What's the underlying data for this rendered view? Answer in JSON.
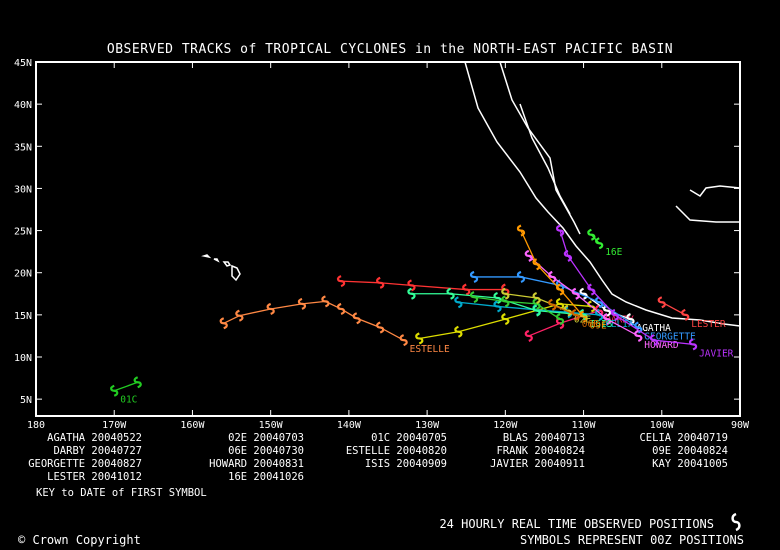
{
  "title": "OBSERVED TRACKS of TROPICAL CYCLONES in the NORTH-EAST PACIFIC BASIN",
  "axes": {
    "lat_labels": [
      "45N",
      "40N",
      "35N",
      "30N",
      "25N",
      "20N",
      "15N",
      "10N",
      "5N"
    ],
    "lat_values": [
      45,
      40,
      35,
      30,
      25,
      20,
      15,
      10,
      5
    ],
    "lon_labels": [
      "180",
      "170W",
      "160W",
      "150W",
      "140W",
      "130W",
      "120W",
      "110W",
      "100W",
      "90W"
    ],
    "lon_values": [
      -180,
      -170,
      -160,
      -150,
      -140,
      -130,
      -120,
      -110,
      -100,
      -90
    ]
  },
  "legend": [
    {
      "name": "AGATHA",
      "date": "20040522"
    },
    {
      "name": "02E",
      "date": "20040703"
    },
    {
      "name": "01C",
      "date": "20040705"
    },
    {
      "name": "BLAS",
      "date": "20040713"
    },
    {
      "name": "CELIA",
      "date": "20040719"
    },
    {
      "name": "DARBY",
      "date": "20040727"
    },
    {
      "name": "06E",
      "date": "20040730"
    },
    {
      "name": "ESTELLE",
      "date": "20040820"
    },
    {
      "name": "FRANK",
      "date": "20040824"
    },
    {
      "name": "09E",
      "date": "20040824"
    },
    {
      "name": "GEORGETTE",
      "date": "20040827"
    },
    {
      "name": "HOWARD",
      "date": "20040831"
    },
    {
      "name": "ISIS",
      "date": "20040909"
    },
    {
      "name": "JAVIER",
      "date": "20040911"
    },
    {
      "name": "KAY",
      "date": "20041005"
    },
    {
      "name": "LESTER",
      "date": "20041012"
    },
    {
      "name": "16E",
      "date": "20041026"
    }
  ],
  "legend_key": "KEY to DATE of FIRST SYMBOL",
  "footer": {
    "copyright": "Crown Copyright",
    "line1": "24 HOURLY REAL TIME OBSERVED POSITIONS",
    "line2": "SYMBOLS REPRESENT 00Z POSITIONS"
  },
  "tracks": [
    {
      "name": "01C",
      "color": "#22cc22",
      "label": "01C",
      "points": [
        [
          -170,
          6
        ],
        [
          -167,
          7
        ]
      ]
    },
    {
      "name": "ESTELLE",
      "color": "#ff8844",
      "label": "ESTELLE",
      "points": [
        [
          -133,
          12
        ],
        [
          -136,
          13.5
        ],
        [
          -139,
          14.6
        ],
        [
          -141,
          15.7
        ],
        [
          -143,
          16.6
        ],
        [
          -146,
          16.3
        ],
        [
          -150,
          15.7
        ],
        [
          -154,
          14.9
        ],
        [
          -156,
          14
        ]
      ]
    },
    {
      "name": "BLAS",
      "color": "#ff3333",
      "label": "",
      "points": [
        [
          -120,
          18
        ],
        [
          -125,
          18
        ],
        [
          -132,
          18.5
        ],
        [
          -136,
          18.8
        ],
        [
          -141,
          19
        ]
      ]
    },
    {
      "name": "DARBY",
      "color": "#ff2266",
      "label": "DARBY",
      "points": [
        [
          -108,
          15.5
        ],
        [
          -113,
          14
        ],
        [
          -117,
          12.5
        ]
      ]
    },
    {
      "name": "FRANK",
      "color": "#dddd00",
      "label": "",
      "points": [
        [
          -109,
          16
        ],
        [
          -113,
          16.3
        ],
        [
          -120,
          14.5
        ],
        [
          -126,
          13
        ],
        [
          -131,
          12.2
        ]
      ]
    },
    {
      "name": "CELIA",
      "color": "#00aacc",
      "label": "CELIA",
      "points": [
        [
          -108,
          15
        ],
        [
          -112,
          15.3
        ],
        [
          -116,
          15.6
        ],
        [
          -121,
          16
        ],
        [
          -126,
          16.5
        ]
      ]
    },
    {
      "name": "AGATHA",
      "color": "#ffffff",
      "label": "AGATHA",
      "points": [
        [
          -104,
          14.5
        ],
        [
          -107,
          15.5
        ],
        [
          -110,
          17.5
        ]
      ]
    },
    {
      "name": "GEORGETTE",
      "color": "#3399ff",
      "label": "GEORGETTE",
      "points": [
        [
          -103,
          13.5
        ],
        [
          -108,
          16.5
        ],
        [
          -113,
          18.5
        ],
        [
          -118,
          19.5
        ],
        [
          -124,
          19.5
        ]
      ]
    },
    {
      "name": "HOWARD",
      "color": "#ff66ff",
      "label": "HOWARD",
      "points": [
        [
          -103,
          12.5
        ],
        [
          -107,
          14.5
        ],
        [
          -111,
          17.5
        ],
        [
          -114,
          19.5
        ],
        [
          -117,
          22
        ]
      ]
    },
    {
      "name": "ISIS",
      "color": "#33ff99",
      "label": "ISIS",
      "points": [
        [
          -110,
          15
        ],
        [
          -116,
          15.5
        ],
        [
          -121,
          17
        ],
        [
          -127,
          17.5
        ],
        [
          -132,
          17.5
        ]
      ]
    },
    {
      "name": "JAVIER",
      "color": "#bb33ff",
      "label": "JAVIER",
      "points": [
        [
          -96,
          11.5
        ],
        [
          -101,
          12
        ],
        [
          -106,
          15
        ],
        [
          -109,
          18
        ],
        [
          -112,
          22
        ],
        [
          -113,
          25
        ]
      ]
    },
    {
      "name": "KAY",
      "color": "#33cc33",
      "label": "",
      "points": [
        [
          -113,
          14.5
        ],
        [
          -116,
          16.3
        ],
        [
          -120,
          16.6
        ],
        [
          -124,
          17.1
        ]
      ]
    },
    {
      "name": "LESTER",
      "color": "#ff4444",
      "label": "LESTER",
      "points": [
        [
          -97,
          15
        ],
        [
          -100,
          16.5
        ]
      ]
    },
    {
      "name": "16E",
      "color": "#33ee33",
      "label": "16E",
      "points": [
        [
          -108,
          23.5
        ],
        [
          -109,
          24.5
        ]
      ]
    },
    {
      "name": "09E",
      "color": "#ff9900",
      "label": "09E",
      "points": [
        [
          -110,
          14.8
        ],
        [
          -113,
          18
        ],
        [
          -116,
          21
        ],
        [
          -118,
          25
        ]
      ]
    },
    {
      "name": "02E",
      "color": "#cccc33",
      "label": "02E",
      "points": [
        [
          -112,
          15.5
        ],
        [
          -116,
          17
        ],
        [
          -120,
          17.5
        ]
      ]
    },
    {
      "name": "06E",
      "color": "#cc6600",
      "label": "06E",
      "points": [
        [
          -111,
          15
        ],
        [
          -114,
          16.2
        ]
      ]
    }
  ]
}
